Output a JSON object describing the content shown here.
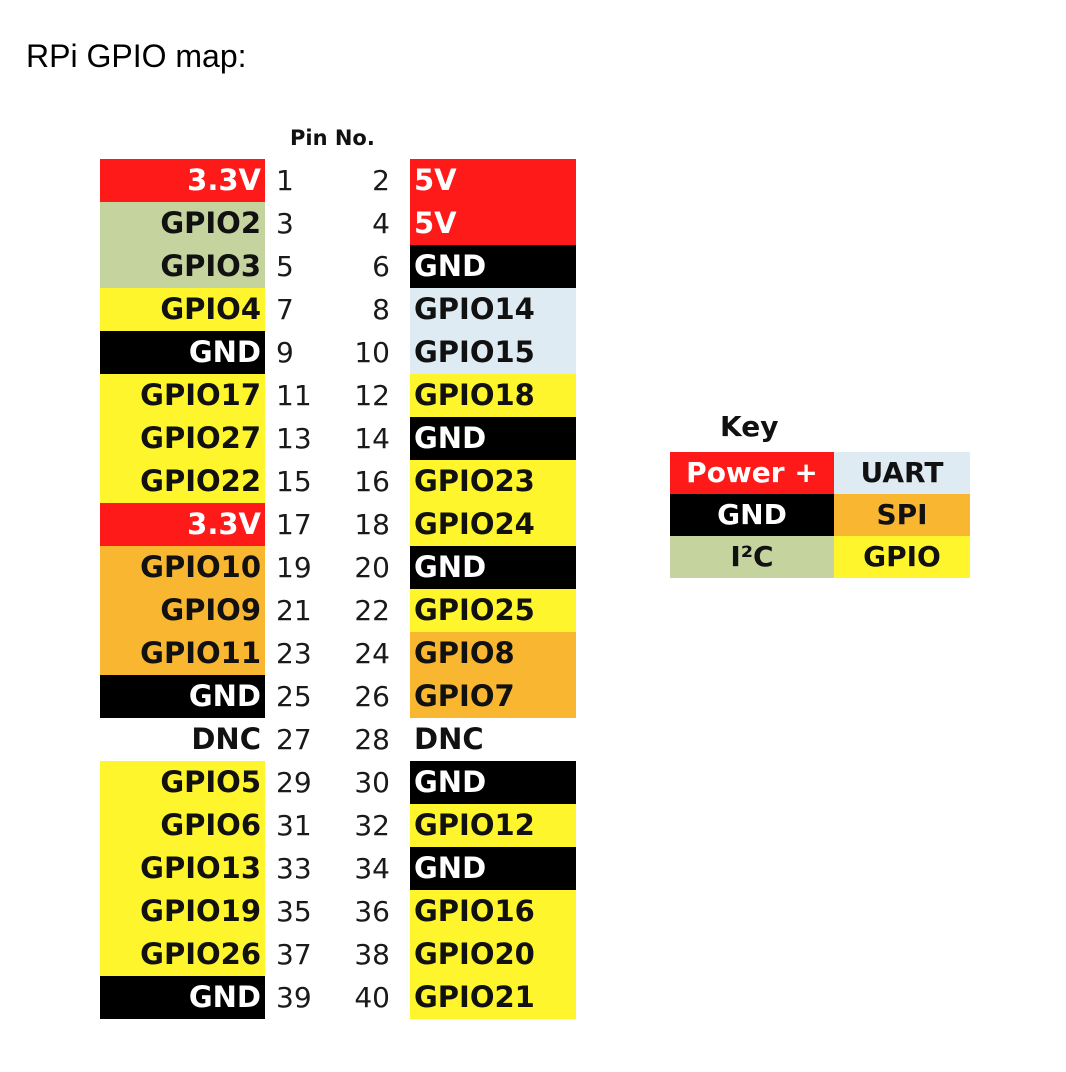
{
  "title": "RPi GPIO map:",
  "pin_header": "Pin No.",
  "colors": {
    "power": "#ff1a1a",
    "gnd": "#000000",
    "i2c": "#c5d39f",
    "uart": "#deebf2",
    "spi": "#f8b631",
    "gpio": "#fff52c",
    "none": "#ffffff"
  },
  "rows": [
    {
      "left": {
        "label": "3.3V",
        "type": "power",
        "pin": "1"
      },
      "right": {
        "label": "5V",
        "type": "power",
        "pin": "2"
      }
    },
    {
      "left": {
        "label": "GPIO2",
        "type": "i2c",
        "pin": "3"
      },
      "right": {
        "label": "5V",
        "type": "power",
        "pin": "4"
      }
    },
    {
      "left": {
        "label": "GPIO3",
        "type": "i2c",
        "pin": "5"
      },
      "right": {
        "label": "GND",
        "type": "gnd",
        "pin": "6"
      }
    },
    {
      "left": {
        "label": "GPIO4",
        "type": "gpio",
        "pin": "7"
      },
      "right": {
        "label": "GPIO14",
        "type": "uart",
        "pin": "8"
      }
    },
    {
      "left": {
        "label": "GND",
        "type": "gnd",
        "pin": "9"
      },
      "right": {
        "label": "GPIO15",
        "type": "uart",
        "pin": "10"
      }
    },
    {
      "left": {
        "label": "GPIO17",
        "type": "gpio",
        "pin": "11"
      },
      "right": {
        "label": "GPIO18",
        "type": "gpio",
        "pin": "12"
      }
    },
    {
      "left": {
        "label": "GPIO27",
        "type": "gpio",
        "pin": "13"
      },
      "right": {
        "label": "GND",
        "type": "gnd",
        "pin": "14"
      }
    },
    {
      "left": {
        "label": "GPIO22",
        "type": "gpio",
        "pin": "15"
      },
      "right": {
        "label": "GPIO23",
        "type": "gpio",
        "pin": "16"
      }
    },
    {
      "left": {
        "label": "3.3V",
        "type": "power",
        "pin": "17"
      },
      "right": {
        "label": "GPIO24",
        "type": "gpio",
        "pin": "18"
      }
    },
    {
      "left": {
        "label": "GPIO10",
        "type": "spi",
        "pin": "19"
      },
      "right": {
        "label": "GND",
        "type": "gnd",
        "pin": "20"
      }
    },
    {
      "left": {
        "label": "GPIO9",
        "type": "spi",
        "pin": "21"
      },
      "right": {
        "label": "GPIO25",
        "type": "gpio",
        "pin": "22"
      }
    },
    {
      "left": {
        "label": "GPIO11",
        "type": "spi",
        "pin": "23"
      },
      "right": {
        "label": "GPIO8",
        "type": "spi",
        "pin": "24"
      }
    },
    {
      "left": {
        "label": "GND",
        "type": "gnd",
        "pin": "25"
      },
      "right": {
        "label": "GPIO7",
        "type": "spi",
        "pin": "26"
      }
    },
    {
      "left": {
        "label": "DNC",
        "type": "none",
        "pin": "27"
      },
      "right": {
        "label": "DNC",
        "type": "none",
        "pin": "28"
      }
    },
    {
      "left": {
        "label": "GPIO5",
        "type": "gpio",
        "pin": "29"
      },
      "right": {
        "label": "GND",
        "type": "gnd",
        "pin": "30"
      }
    },
    {
      "left": {
        "label": "GPIO6",
        "type": "gpio",
        "pin": "31"
      },
      "right": {
        "label": "GPIO12",
        "type": "gpio",
        "pin": "32"
      }
    },
    {
      "left": {
        "label": "GPIO13",
        "type": "gpio",
        "pin": "33"
      },
      "right": {
        "label": "GND",
        "type": "gnd",
        "pin": "34"
      }
    },
    {
      "left": {
        "label": "GPIO19",
        "type": "gpio",
        "pin": "35"
      },
      "right": {
        "label": "GPIO16",
        "type": "gpio",
        "pin": "36"
      }
    },
    {
      "left": {
        "label": "GPIO26",
        "type": "gpio",
        "pin": "37"
      },
      "right": {
        "label": "GPIO20",
        "type": "gpio",
        "pin": "38"
      }
    },
    {
      "left": {
        "label": "GND",
        "type": "gnd",
        "pin": "39"
      },
      "right": {
        "label": "GPIO21",
        "type": "gpio",
        "pin": "40"
      }
    }
  ],
  "key": {
    "title": "Key",
    "rows": [
      [
        {
          "label": "Power +",
          "type": "power"
        },
        {
          "label": "UART",
          "type": "uart"
        }
      ],
      [
        {
          "label": "GND",
          "type": "gnd"
        },
        {
          "label": "SPI",
          "type": "spi"
        }
      ],
      [
        {
          "label": "I²C",
          "type": "i2c"
        },
        {
          "label": "GPIO",
          "type": "gpio"
        }
      ]
    ]
  }
}
